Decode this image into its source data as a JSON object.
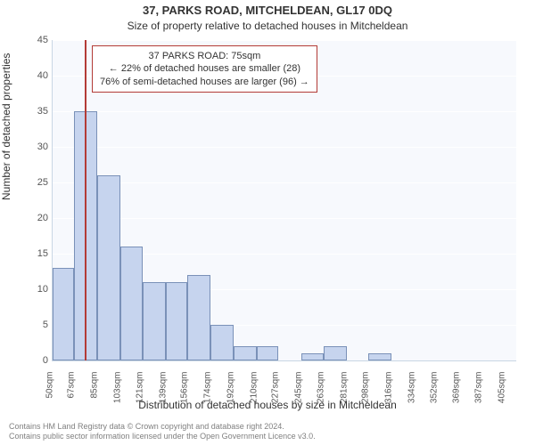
{
  "title": "37, PARKS ROAD, MITCHELDEAN, GL17 0DQ",
  "subtitle": "Size of property relative to detached houses in Mitcheldean",
  "ylabel": "Number of detached properties",
  "xlabel": "Distribution of detached houses by size in Mitcheldean",
  "chart": {
    "type": "bar",
    "background_color": "#f7f9fd",
    "grid_color": "#ffffff",
    "bar_fill": "#c6d4ee",
    "bar_stroke": "#7a91b8",
    "marker_color": "#b33b36",
    "xlim": [
      50,
      414
    ],
    "ylim": [
      0,
      45
    ],
    "ytick_step": 5,
    "xticks": [
      50,
      67,
      85,
      103,
      121,
      139,
      156,
      174,
      192,
      210,
      227,
      245,
      263,
      281,
      298,
      316,
      334,
      352,
      369,
      387,
      405
    ],
    "xtick_suffix": "sqm",
    "bars": [
      {
        "x": 50,
        "w": 17,
        "v": 13
      },
      {
        "x": 67,
        "w": 18,
        "v": 35
      },
      {
        "x": 85,
        "w": 18,
        "v": 26
      },
      {
        "x": 103,
        "w": 18,
        "v": 16
      },
      {
        "x": 121,
        "w": 18,
        "v": 11
      },
      {
        "x": 139,
        "w": 17,
        "v": 11
      },
      {
        "x": 156,
        "w": 18,
        "v": 12
      },
      {
        "x": 174,
        "w": 18,
        "v": 5
      },
      {
        "x": 192,
        "w": 18,
        "v": 2
      },
      {
        "x": 210,
        "w": 17,
        "v": 2
      },
      {
        "x": 245,
        "w": 18,
        "v": 1
      },
      {
        "x": 263,
        "w": 18,
        "v": 2
      },
      {
        "x": 298,
        "w": 18,
        "v": 1
      }
    ],
    "marker_x": 75,
    "annotation": {
      "line1": "37 PARKS ROAD: 75sqm",
      "line2": "← 22% of detached houses are smaller (28)",
      "line3": "76% of semi-detached houses are larger (96) →"
    }
  },
  "footer": {
    "line1": "Contains HM Land Registry data © Crown copyright and database right 2024.",
    "line2": "Contains public sector information licensed under the Open Government Licence v3.0."
  }
}
